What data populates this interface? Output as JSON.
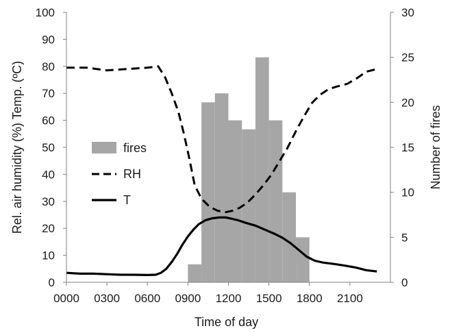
{
  "chart_data": {
    "type": "bar",
    "xlabel": "Time of day",
    "ylabel_left": "Rel. air humidity (%) Temp. (ºC)",
    "ylabel_right": "Number of fires",
    "ylim_left": [
      0,
      100
    ],
    "ylim_right": [
      0,
      30
    ],
    "xlim": [
      0,
      2400
    ],
    "yticks_left": [
      "0",
      "10",
      "20",
      "30",
      "40",
      "50",
      "60",
      "70",
      "80",
      "90",
      "100"
    ],
    "yticks_right": [
      "0",
      "5",
      "10",
      "15",
      "20",
      "25",
      "30"
    ],
    "xticks": [
      {
        "value": 0,
        "label": "0000"
      },
      {
        "value": 300,
        "label": "0300"
      },
      {
        "value": 600,
        "label": "0600"
      },
      {
        "value": 900,
        "label": "0900"
      },
      {
        "value": 1200,
        "label": "1200"
      },
      {
        "value": 1500,
        "label": "1500"
      },
      {
        "value": 1800,
        "label": "1800"
      },
      {
        "value": 2100,
        "label": "2100"
      }
    ],
    "legend": [
      "fires",
      "RH",
      "T"
    ],
    "legend_position": "center-left",
    "grid": false,
    "bars": {
      "name": "fires",
      "color": "#a6a6a6",
      "axis": "right",
      "bin_width": 100,
      "start": [
        900,
        1000,
        1100,
        1200,
        1300,
        1400,
        1500,
        1600,
        1700
      ],
      "values": [
        2,
        20,
        21,
        18,
        17,
        25,
        18,
        10,
        5
      ]
    },
    "series": [
      {
        "name": "RH",
        "axis": "left",
        "style": "dashed",
        "color": "#000000",
        "x": [
          0,
          150,
          300,
          450,
          600,
          680,
          730,
          780,
          830,
          870,
          910,
          950,
          1000,
          1060,
          1120,
          1180,
          1230,
          1280,
          1340,
          1400,
          1460,
          1520,
          1580,
          1640,
          1700,
          1760,
          1820,
          1880,
          1940,
          2000,
          2080,
          2150,
          2220,
          2300
        ],
        "y": [
          79.5,
          79.5,
          78.5,
          79,
          79.5,
          80,
          76,
          70,
          63,
          55,
          46,
          36,
          31,
          28,
          26.5,
          26,
          26.5,
          27.5,
          29.5,
          32.5,
          36,
          40,
          45,
          50,
          56,
          61.5,
          66.5,
          69.5,
          71.5,
          72.5,
          73.5,
          75.5,
          78,
          79
        ]
      },
      {
        "name": "T",
        "axis": "left",
        "style": "solid",
        "color": "#000000",
        "x": [
          0,
          100,
          200,
          300,
          400,
          500,
          600,
          660,
          700,
          740,
          780,
          820,
          860,
          900,
          940,
          980,
          1030,
          1080,
          1130,
          1180,
          1220,
          1270,
          1330,
          1400,
          1470,
          1540,
          1600,
          1660,
          1720,
          1780,
          1840,
          1900,
          1980,
          2060,
          2140,
          2220,
          2300
        ],
        "y": [
          3.5,
          3.2,
          3.2,
          3.0,
          2.8,
          2.8,
          2.7,
          2.8,
          3.5,
          5,
          7.5,
          10.5,
          14,
          17,
          19.5,
          21.5,
          23,
          23.7,
          24,
          24,
          23.6,
          23,
          22,
          21,
          19.5,
          18,
          16.5,
          14.5,
          12,
          9.5,
          8,
          7.3,
          6.8,
          6.2,
          5.5,
          4.5,
          4
        ]
      }
    ]
  }
}
